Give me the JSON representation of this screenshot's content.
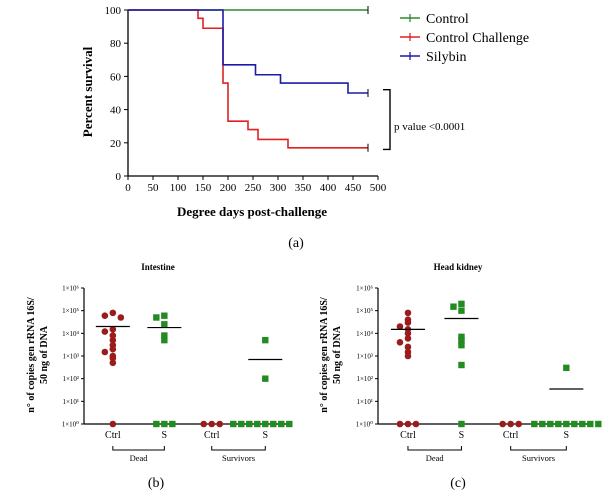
{
  "colors": {
    "control": "#2e8b2e",
    "challenge": "#dd2222",
    "silybin": "#1c1ca8",
    "dead_dot": "#9b1c1c",
    "survivor_sq": "#228b22"
  },
  "chart_data": [
    {
      "id": "a",
      "type": "line",
      "panel_label": "(a)",
      "xlabel": "Degree days post-challenge",
      "ylabel": "Percent survival",
      "xlim": [
        0,
        500
      ],
      "ylim": [
        0,
        100
      ],
      "xticks": [
        0,
        50,
        100,
        150,
        200,
        250,
        300,
        350,
        400,
        450,
        500
      ],
      "yticks": [
        0,
        20,
        40,
        60,
        80,
        100
      ],
      "step": true,
      "series": [
        {
          "name": "Control",
          "color": "#2e8b2e",
          "x": [
            0,
            480
          ],
          "y": [
            100,
            100
          ]
        },
        {
          "name": "Control Challenge",
          "color": "#dd2222",
          "x": [
            0,
            140,
            150,
            165,
            190,
            200,
            210,
            240,
            260,
            320,
            480
          ],
          "y": [
            100,
            95,
            89,
            89,
            56,
            33,
            33,
            28,
            22,
            17,
            17
          ]
        },
        {
          "name": "Silybin",
          "color": "#1c1ca8",
          "x": [
            0,
            190,
            255,
            305,
            440,
            480
          ],
          "y": [
            100,
            67,
            61,
            56,
            50,
            50
          ]
        }
      ],
      "annotation": "p value <0.0001",
      "legend_position": "top-right"
    },
    {
      "id": "b",
      "type": "scatter",
      "panel_label": "(b)",
      "title": "Intestine",
      "ylabel": "n° of copies gen rRNA 16S/ 50 ng of DNA",
      "yscale": "log",
      "yticks": [
        "1×10⁰",
        "1×10¹",
        "1×10²",
        "1×10³",
        "1×10⁴",
        "1×10⁵",
        "1×10⁶"
      ],
      "categories": [
        "Ctrl",
        "S",
        "Ctrl",
        "S"
      ],
      "groups": [
        "Dead",
        "Survivors"
      ],
      "series": [
        {
          "category": "Ctrl",
          "group": "Dead",
          "marker": "circle",
          "color": "#9b1c1c",
          "values": [
            80000,
            60000,
            50000,
            15000,
            12000,
            8000,
            5000,
            3000,
            2000,
            1500,
            1000,
            800,
            500,
            1
          ]
        },
        {
          "category": "S",
          "group": "Dead",
          "marker": "square",
          "color": "#228b22",
          "values": [
            60000,
            50000,
            25000,
            8000,
            5000,
            1,
            1,
            1
          ]
        },
        {
          "category": "Ctrl",
          "group": "Survivors",
          "marker": "circle",
          "color": "#9b1c1c",
          "values": [
            1,
            1,
            1
          ]
        },
        {
          "category": "S",
          "group": "Survivors",
          "marker": "square",
          "color": "#228b22",
          "values": [
            5000,
            100,
            1,
            1,
            1,
            1,
            1,
            1,
            1,
            1
          ]
        }
      ],
      "means": [
        20000,
        18000,
        null,
        700
      ]
    },
    {
      "id": "c",
      "type": "scatter",
      "panel_label": "(c)",
      "title": "Head kidney",
      "ylabel": "n° of copies gen rRNA 16S/ 50 ng of DNA",
      "yscale": "log",
      "yticks": [
        "1×10⁰",
        "1×10¹",
        "1×10²",
        "1×10³",
        "1×10⁴",
        "1×10⁵",
        "1×10⁶"
      ],
      "categories": [
        "Ctrl",
        "S",
        "Ctrl",
        "S"
      ],
      "groups": [
        "Dead",
        "Survivors"
      ],
      "series": [
        {
          "category": "Ctrl",
          "group": "Dead",
          "marker": "circle",
          "color": "#9b1c1c",
          "values": [
            80000,
            40000,
            30000,
            20000,
            15000,
            10000,
            6000,
            4000,
            2500,
            1500,
            1000,
            1,
            1,
            1
          ]
        },
        {
          "category": "S",
          "group": "Dead",
          "marker": "square",
          "color": "#228b22",
          "values": [
            200000,
            150000,
            100000,
            7000,
            5000,
            3000,
            400,
            1
          ]
        },
        {
          "category": "Ctrl",
          "group": "Survivors",
          "marker": "circle",
          "color": "#9b1c1c",
          "values": [
            1,
            1,
            1
          ]
        },
        {
          "category": "S",
          "group": "Survivors",
          "marker": "square",
          "color": "#228b22",
          "values": [
            300,
            1,
            1,
            1,
            1,
            1,
            1,
            1,
            1,
            1
          ]
        }
      ],
      "means": [
        15000,
        45000,
        null,
        35
      ]
    }
  ]
}
